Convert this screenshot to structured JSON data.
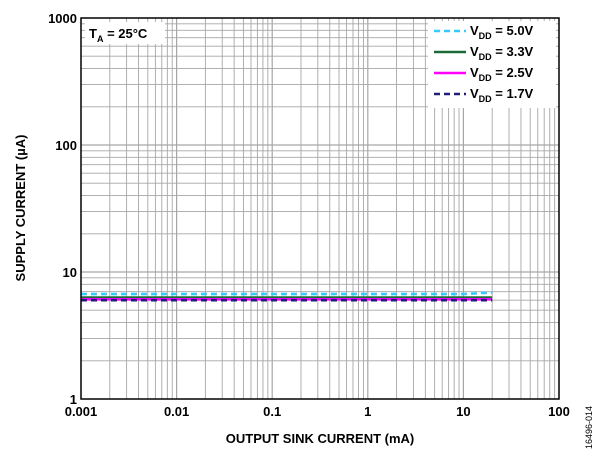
{
  "chart_data": {
    "type": "line",
    "xlabel": "OUTPUT SINK CURRENT (mA)",
    "ylabel": "SUPPLY CURRENT (µA)",
    "xscale": "log",
    "yscale": "log",
    "xlim": [
      0.001,
      100
    ],
    "ylim": [
      1,
      1000
    ],
    "x_ticks": [
      "0.001",
      "0.01",
      "0.1",
      "1",
      "10",
      "100"
    ],
    "y_ticks": [
      "1",
      "10",
      "100",
      "1000"
    ],
    "grid": true,
    "legend_position": "top-right",
    "annotation": {
      "main": "T",
      "sub": "A",
      "rest": " = 25°C"
    },
    "side_code": "16496-014",
    "series": [
      {
        "name": "VDD = 5.0V",
        "label_main": "V",
        "label_sub": "DD",
        "label_rest": " = 5.0V",
        "color": "#33ccff",
        "dash": "dashed",
        "x": [
          0.001,
          0.01,
          0.1,
          1,
          10,
          20
        ],
        "y": [
          6.7,
          6.7,
          6.7,
          6.7,
          6.7,
          6.9
        ]
      },
      {
        "name": "VDD = 3.3V",
        "label_main": "V",
        "label_sub": "DD",
        "label_rest": " = 3.3V",
        "color": "#1b6b3a",
        "dash": "solid",
        "x": [
          0.001,
          0.01,
          0.1,
          1,
          10,
          20
        ],
        "y": [
          6.3,
          6.3,
          6.3,
          6.3,
          6.3,
          6.3
        ]
      },
      {
        "name": "VDD = 2.5V",
        "label_main": "V",
        "label_sub": "DD",
        "label_rest": " = 2.5V",
        "color": "#ff00ff",
        "dash": "solid",
        "x": [
          0.001,
          0.01,
          0.1,
          1,
          10,
          20
        ],
        "y": [
          6.1,
          6.1,
          6.1,
          6.1,
          6.1,
          6.1
        ]
      },
      {
        "name": "VDD = 1.7V",
        "label_main": "V",
        "label_sub": "DD",
        "label_rest": " = 1.7V",
        "color": "#1f1f7a",
        "dash": "dashed",
        "x": [
          0.001,
          0.01,
          0.1,
          1,
          10,
          20
        ],
        "y": [
          6.0,
          6.0,
          6.0,
          6.0,
          6.0,
          6.0
        ]
      }
    ]
  }
}
